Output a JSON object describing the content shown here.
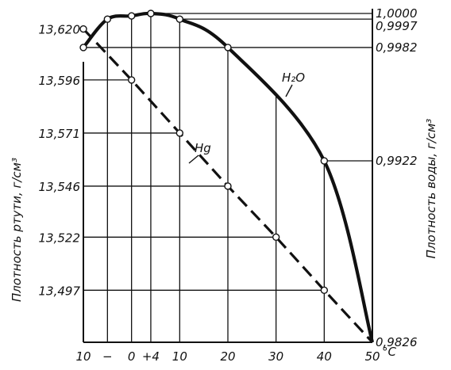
{
  "chart_data": {
    "type": "line",
    "x_axis": {
      "unit": "°C",
      "range": [
        -10,
        50
      ],
      "tick_labels": [
        "10",
        "−",
        "0",
        "+4",
        "10",
        "20",
        "30",
        "40",
        "50"
      ],
      "tick_values": [
        -10,
        -5,
        0,
        4,
        10,
        20,
        30,
        40,
        50
      ],
      "unit_label": "°C"
    },
    "y_left": {
      "label": "Плотность ртути, г/см³",
      "range": [
        13.4725,
        13.6273
      ],
      "tick_labels": [
        "13,620",
        "13,596",
        "13,571",
        "13,546",
        "13,522",
        "13,497"
      ],
      "tick_values": [
        13.62,
        13.596,
        13.571,
        13.546,
        13.522,
        13.497
      ]
    },
    "y_right": {
      "label": "Плотность воды, г/см³",
      "range": [
        0.9826,
        1.0
      ],
      "tick_labels": [
        "1,0000",
        "0,9997",
        "0,9982",
        "0,9922",
        "0,9826"
      ],
      "tick_values": [
        1.0,
        0.9997,
        0.9982,
        0.9922,
        0.9826
      ]
    },
    "series": [
      {
        "name": "Hg",
        "axis": "left",
        "style": "dashed",
        "color": "#111111",
        "x": [
          -10,
          0,
          10,
          20,
          30,
          40,
          50
        ],
        "y": [
          13.62,
          13.596,
          13.571,
          13.546,
          13.522,
          13.497,
          13.4725
        ]
      },
      {
        "name": "H₂O",
        "axis": "right",
        "style": "solid",
        "color": "#111111",
        "x": [
          -10,
          -5,
          0,
          4,
          10,
          20,
          40,
          50
        ],
        "y": [
          0.9982,
          0.9997,
          0.99987,
          1.0,
          0.9997,
          0.9982,
          0.9922,
          0.9826
        ]
      }
    ],
    "grid": true
  }
}
